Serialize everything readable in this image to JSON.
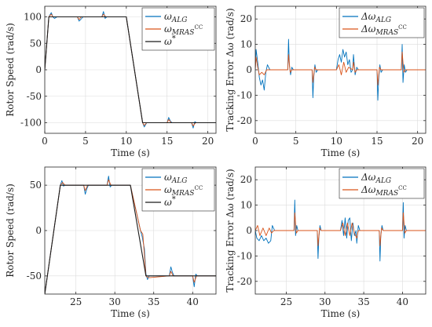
{
  "chart_data": [
    {
      "type": "line",
      "xlabel": "Time (s)",
      "ylabel": "Rotor Speed (rad/s)",
      "xlim": [
        0,
        21
      ],
      "ylim": [
        -120,
        120
      ],
      "xticks": [
        0,
        5,
        10,
        15,
        20
      ],
      "yticks": [
        -100,
        -50,
        0,
        50,
        100
      ],
      "grid": true,
      "legend_position": "top-right",
      "legend": [
        "ω_ALG",
        "ω_MRAS^CC",
        "ω*"
      ],
      "series": [
        {
          "name": "ω_ALG",
          "color": "#0072BD",
          "x": [
            0,
            0.5,
            0.8,
            1.0,
            1.2,
            1.5,
            4.0,
            4.2,
            4.4,
            4.7,
            7.0,
            7.2,
            7.4,
            7.6,
            10.0,
            12.0,
            12.2,
            12.5,
            12.8,
            15.0,
            15.2,
            15.4,
            15.6,
            18.0,
            18.2,
            18.4,
            18.6,
            21.0
          ],
          "y": [
            0,
            100,
            108,
            100,
            97,
            100,
            100,
            92,
            95,
            100,
            100,
            110,
            97,
            100,
            100,
            -100,
            -108,
            -100,
            -100,
            -100,
            -90,
            -97,
            -100,
            -100,
            -110,
            -98,
            -100,
            -100
          ]
        },
        {
          "name": "ω_MRAS^CC",
          "color": "#D95319",
          "x": [
            0,
            0.5,
            0.8,
            1.0,
            1.5,
            4.0,
            4.2,
            4.5,
            7.0,
            7.2,
            7.5,
            10.0,
            12.0,
            12.2,
            12.5,
            15.0,
            15.2,
            15.5,
            18.0,
            18.2,
            18.5,
            21.0
          ],
          "y": [
            0,
            100,
            105,
            100,
            100,
            100,
            95,
            100,
            100,
            105,
            100,
            100,
            -100,
            -105,
            -100,
            -100,
            -94,
            -100,
            -100,
            -106,
            -100,
            -100
          ]
        },
        {
          "name": "ω*",
          "color": "#1a1a1a",
          "x": [
            0,
            0.5,
            10.0,
            12.0,
            21.0
          ],
          "y": [
            0,
            100,
            100,
            -100,
            -100
          ]
        }
      ]
    },
    {
      "type": "line",
      "xlabel": "Time (s)",
      "ylabel": "Tracking Error Δω (rad/s)",
      "xlim": [
        0,
        21
      ],
      "ylim": [
        -25,
        25
      ],
      "xticks": [
        0,
        5,
        10,
        15,
        20
      ],
      "yticks": [
        -20,
        -10,
        0,
        10,
        20
      ],
      "grid": true,
      "legend_position": "top-right",
      "legend": [
        "Δω_ALG",
        "Δω_MRAS^CC"
      ],
      "series": [
        {
          "name": "Δω_ALG",
          "color": "#0072BD",
          "x": [
            0,
            0.1,
            0.3,
            0.5,
            0.7,
            0.9,
            1.1,
            1.3,
            1.5,
            1.8,
            4.0,
            4.1,
            4.2,
            4.35,
            4.5,
            4.7,
            7.0,
            7.1,
            7.2,
            7.35,
            7.5,
            7.7,
            10.0,
            10.2,
            10.4,
            10.6,
            10.8,
            11.0,
            11.2,
            11.4,
            11.6,
            11.8,
            12.0,
            12.1,
            12.3,
            12.5,
            12.7,
            15.0,
            15.1,
            15.2,
            15.35,
            15.5,
            15.7,
            18.0,
            18.1,
            18.2,
            18.35,
            18.5,
            18.7,
            21.0
          ],
          "y": [
            0,
            8,
            3,
            -3,
            -6,
            -4,
            -8,
            -1,
            2,
            0,
            0,
            12,
            2,
            -2,
            1,
            0,
            0,
            -11,
            -3,
            2,
            -1,
            0,
            0,
            4,
            6,
            3,
            8,
            5,
            7,
            2,
            4,
            -1,
            0,
            6,
            -2,
            1,
            0,
            0,
            -12,
            -4,
            2,
            -1,
            0,
            0,
            10,
            -5,
            2,
            -1,
            0,
            0
          ]
        },
        {
          "name": "Δω_MRAS^CC",
          "color": "#D95319",
          "x": [
            0,
            0.1,
            0.3,
            0.5,
            0.8,
            1.1,
            1.4,
            4.0,
            4.1,
            4.3,
            4.5,
            7.0,
            7.1,
            7.3,
            7.5,
            10.0,
            10.3,
            10.6,
            10.9,
            11.2,
            11.5,
            12.0,
            12.1,
            12.3,
            12.5,
            15.0,
            15.1,
            15.3,
            15.5,
            18.0,
            18.1,
            18.3,
            18.5,
            21.0
          ],
          "y": [
            0,
            5,
            1,
            -2,
            -1,
            -2,
            0,
            0,
            6,
            -1,
            0,
            0,
            -5,
            1,
            0,
            0,
            2,
            -2,
            3,
            -1,
            1,
            0,
            3,
            -1,
            0,
            0,
            -6,
            1,
            0,
            0,
            7,
            -1,
            0,
            0
          ]
        }
      ]
    },
    {
      "type": "line",
      "xlabel": "Time (s)",
      "ylabel": "Rotor Speed (rad/s)",
      "xlim": [
        21,
        43
      ],
      "ylim": [
        -70,
        70
      ],
      "xticks": [
        25,
        30,
        35,
        40
      ],
      "yticks": [
        -50,
        0,
        50
      ],
      "grid": true,
      "legend_position": "top-right",
      "legend": [
        "ω_ALG",
        "ω_MRAS^CC",
        "ω*"
      ],
      "series": [
        {
          "name": "ω_ALG",
          "color": "#0072BD",
          "x": [
            21,
            23.0,
            23.2,
            23.4,
            23.6,
            26.0,
            26.2,
            26.4,
            26.6,
            29.0,
            29.2,
            29.4,
            29.6,
            32.0,
            33.3,
            33.5,
            33.8,
            34.0,
            34.2,
            34.4,
            37.0,
            37.2,
            37.4,
            37.6,
            40.0,
            40.2,
            40.4,
            40.6,
            43
          ],
          "y": [
            -70,
            50,
            55,
            49,
            50,
            50,
            40,
            46,
            50,
            50,
            60,
            48,
            50,
            50,
            0,
            -6,
            -20,
            -48,
            -54,
            -50,
            -50,
            -40,
            -46,
            -50,
            -50,
            -62,
            -48,
            -50,
            -50
          ]
        },
        {
          "name": "ω_MRAS^CC",
          "color": "#D95319",
          "x": [
            21,
            23.0,
            23.3,
            23.6,
            26.0,
            26.2,
            26.5,
            29.0,
            29.2,
            29.5,
            32.0,
            33.3,
            33.6,
            34.0,
            34.3,
            37.0,
            37.2,
            37.5,
            40.0,
            40.2,
            40.5,
            43
          ],
          "y": [
            -70,
            50,
            53,
            50,
            50,
            44,
            50,
            50,
            56,
            50,
            50,
            0,
            -4,
            -50,
            -52,
            -50,
            -45,
            -50,
            -50,
            -57,
            -50,
            -50
          ]
        },
        {
          "name": "ω*",
          "color": "#1a1a1a",
          "x": [
            21,
            23.0,
            32.0,
            34.0,
            43
          ],
          "y": [
            -70,
            50,
            50,
            -50,
            -50
          ]
        }
      ]
    },
    {
      "type": "line",
      "xlabel": "Time (s)",
      "ylabel": "Tracking Error Δω (rad/s)",
      "xlim": [
        21,
        43
      ],
      "ylim": [
        -25,
        25
      ],
      "xticks": [
        25,
        30,
        35,
        40
      ],
      "yticks": [
        -20,
        -10,
        0,
        10,
        20
      ],
      "grid": true,
      "legend_position": "top-right",
      "legend": [
        "Δω_ALG",
        "Δω_MRAS^CC"
      ],
      "series": [
        {
          "name": "Δω_ALG",
          "color": "#0072BD",
          "x": [
            21.0,
            21.2,
            21.5,
            21.8,
            22.1,
            22.4,
            22.7,
            23.0,
            23.2,
            23.5,
            26.0,
            26.1,
            26.2,
            26.35,
            26.5,
            29.0,
            29.1,
            29.2,
            29.35,
            29.5,
            32.0,
            32.2,
            32.4,
            32.6,
            32.8,
            33.0,
            33.2,
            33.4,
            33.6,
            33.8,
            34.0,
            34.1,
            34.3,
            34.5,
            37.0,
            37.1,
            37.2,
            37.35,
            37.5,
            40.0,
            40.1,
            40.2,
            40.35,
            40.5,
            43.0
          ],
          "y": [
            0,
            -3,
            -4,
            -2,
            -4,
            -3,
            -5,
            -4,
            2,
            0,
            0,
            12,
            -2,
            2,
            0,
            0,
            -11,
            -3,
            2,
            0,
            0,
            4,
            -2,
            5,
            -3,
            4,
            5,
            -4,
            3,
            -2,
            0,
            -5,
            2,
            0,
            0,
            -12,
            -2,
            2,
            0,
            0,
            11,
            -3,
            2,
            0,
            0
          ]
        },
        {
          "name": "Δω_MRAS^CC",
          "color": "#D95319",
          "x": [
            21.0,
            21.3,
            21.6,
            22.0,
            22.4,
            22.8,
            23.1,
            23.4,
            26.0,
            26.1,
            26.3,
            26.5,
            29.0,
            29.1,
            29.3,
            29.5,
            32.0,
            32.3,
            32.6,
            32.9,
            33.2,
            33.5,
            33.8,
            34.1,
            34.3,
            37.0,
            37.1,
            37.3,
            37.5,
            40.0,
            40.1,
            40.3,
            40.5,
            43.0
          ],
          "y": [
            0,
            2,
            -2,
            1,
            -2,
            1,
            -1,
            0,
            0,
            7,
            -1,
            0,
            0,
            -6,
            1,
            0,
            0,
            3,
            -2,
            3,
            -2,
            3,
            -1,
            -3,
            0,
            0,
            -6,
            1,
            0,
            0,
            7,
            -1,
            0,
            0
          ]
        }
      ]
    }
  ]
}
